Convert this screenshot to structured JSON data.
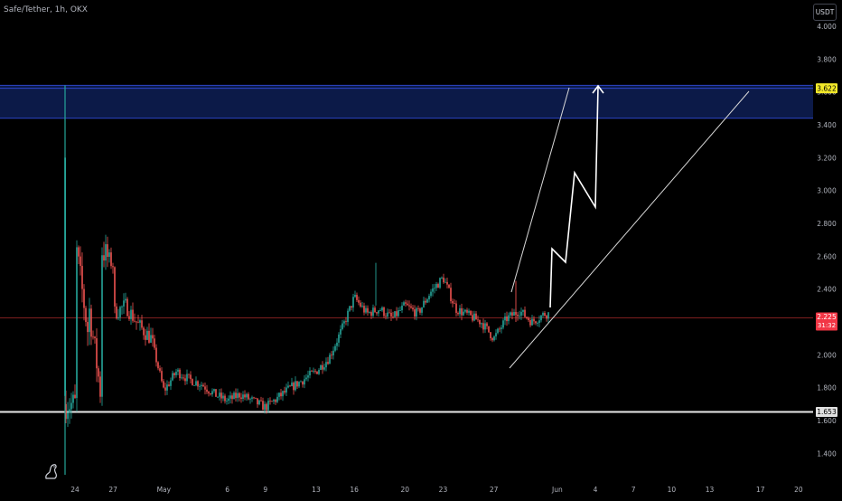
{
  "header": {
    "symbol_title": "Safe/Tether, 1h, OKX",
    "currency_button": "USDT"
  },
  "colors": {
    "background": "#000000",
    "up_candle": "#26a69a",
    "down_candle": "#ef5350",
    "zone_fill": "#0c1a48",
    "zone_border": "#2d45c9",
    "current_price_line": "#7d1f1f",
    "support_line": "#e8e8e8",
    "drawing": "#ffffff",
    "price_tag_yellow": "#f2e829",
    "price_tag_red": "#f23645"
  },
  "price_tags": {
    "resistance": "3.622",
    "current_price": "2.225",
    "countdown": "31:32",
    "support": "1.653"
  },
  "chart_data": {
    "type": "candlestick",
    "title": "Safe/Tether, 1h, OKX",
    "ylabel": "USDT",
    "yticks": [
      "4.000",
      "3.800",
      "3.600",
      "3.400",
      "3.200",
      "3.000",
      "2.800",
      "2.600",
      "2.400",
      "2.200",
      "2.000",
      "1.800",
      "1.600",
      "1.400"
    ],
    "xticks": [
      "24",
      "27",
      "May",
      "6",
      "9",
      "13",
      "16",
      "20",
      "23",
      "27",
      "Jun",
      "4",
      "7",
      "10",
      "13",
      "17",
      "20"
    ],
    "ylim": [
      1.3,
      4.05
    ],
    "grid": false,
    "price_anchors": [
      [
        "Apr 24",
        1.7
      ],
      [
        "Apr 24",
        3.25
      ],
      [
        "Apr 24",
        2.7
      ],
      [
        "Apr 25",
        2.15
      ],
      [
        "Apr 25",
        1.95
      ],
      [
        "Apr 25",
        2.35
      ],
      [
        "Apr 26",
        1.78
      ],
      [
        "Apr 26",
        2.2
      ],
      [
        "Apr 26",
        2.65
      ],
      [
        "Apr 27",
        2.55
      ],
      [
        "Apr 27",
        2.25
      ],
      [
        "Apr 28",
        2.3
      ],
      [
        "Apr 29",
        2.18
      ],
      [
        "Apr 30",
        2.1
      ],
      [
        "May 1",
        1.78
      ],
      [
        "May 2",
        1.9
      ],
      [
        "May 3",
        1.85
      ],
      [
        "May 4",
        1.82
      ],
      [
        "May 5",
        1.76
      ],
      [
        "May 6",
        1.72
      ],
      [
        "May 7",
        1.76
      ],
      [
        "May 8",
        1.72
      ],
      [
        "May 9",
        1.68
      ],
      [
        "May 10",
        1.74
      ],
      [
        "May 11",
        1.8
      ],
      [
        "May 12",
        1.85
      ],
      [
        "May 13",
        1.9
      ],
      [
        "May 14",
        1.98
      ],
      [
        "May 15",
        2.15
      ],
      [
        "May 16",
        2.35
      ],
      [
        "May 17",
        2.25
      ],
      [
        "May 18",
        2.28
      ],
      [
        "May 19",
        2.22
      ],
      [
        "May 20",
        2.3
      ],
      [
        "May 21",
        2.25
      ],
      [
        "May 22",
        2.38
      ],
      [
        "May 23",
        2.47
      ],
      [
        "May 24",
        2.28
      ],
      [
        "May 25",
        2.24
      ],
      [
        "May 26",
        2.2
      ],
      [
        "May 27",
        2.1
      ],
      [
        "May 28",
        2.22
      ],
      [
        "May 29",
        2.27
      ],
      [
        "May 30",
        2.2
      ],
      [
        "May 31",
        2.25
      ]
    ],
    "resistance_zone": [
      3.44,
      3.64
    ],
    "resistance_level": 3.622,
    "support_level": 1.653,
    "current_price": 2.225
  }
}
